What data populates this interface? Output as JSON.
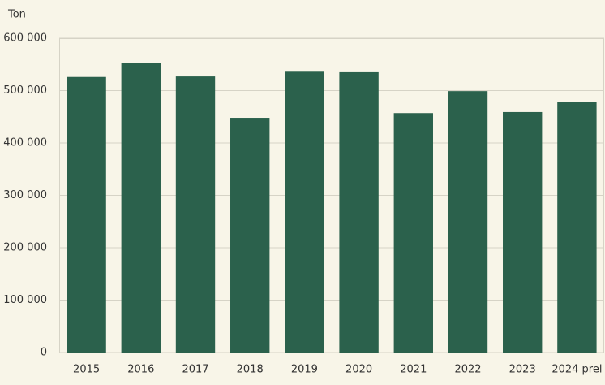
{
  "chart_data": {
    "type": "bar",
    "y_label": "Ton",
    "categories": [
      "2015",
      "2016",
      "2017",
      "2018",
      "2019",
      "2020",
      "2021",
      "2022",
      "2023",
      "2024 prel"
    ],
    "values": [
      526000,
      552000,
      527000,
      448000,
      536000,
      535000,
      457000,
      499000,
      459000,
      478000
    ],
    "color": "#2b614c",
    "ylim": [
      0,
      600000
    ],
    "yticks": [
      0,
      {
        "value": 100000,
        "label": "100 000"
      },
      {
        "value": 200000,
        "label": "200 000"
      },
      {
        "value": 300000,
        "label": "300 000"
      },
      {
        "value": 400000,
        "label": "400 000"
      },
      {
        "value": 500000,
        "label": "500 000"
      },
      {
        "value": 600000,
        "label": "600 000"
      }
    ],
    "grid": true
  }
}
